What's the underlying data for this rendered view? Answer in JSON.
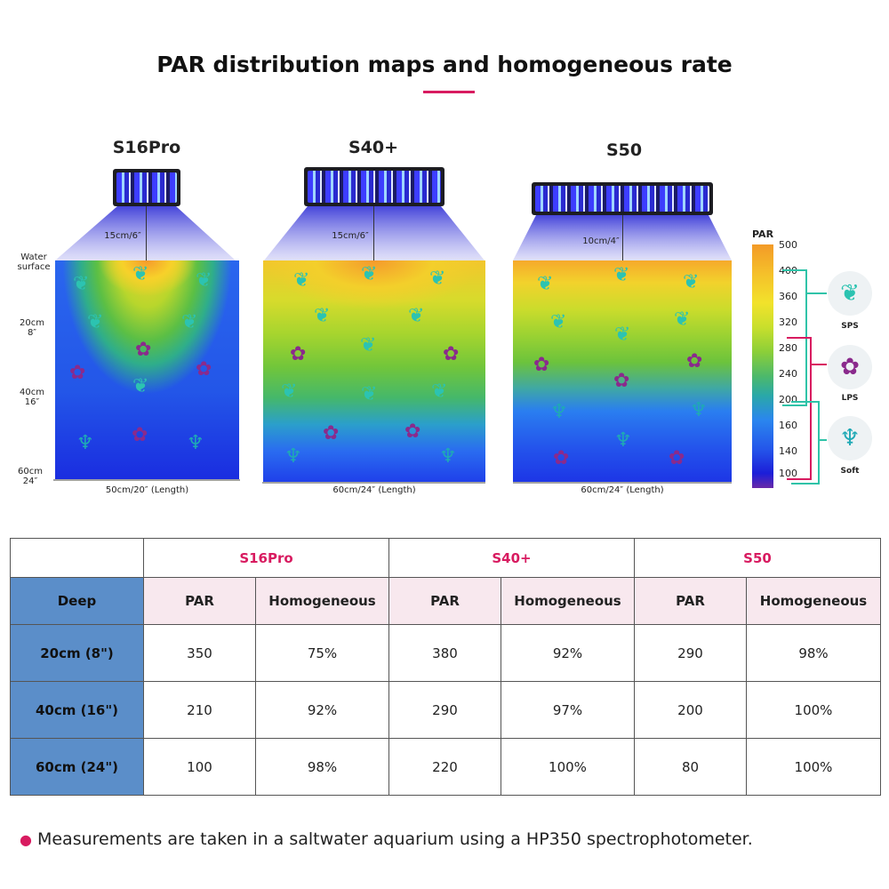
{
  "title": "PAR distribution maps and homogeneous rate",
  "accent_color": "#d81b60",
  "products": [
    {
      "name": "S16Pro",
      "height_label": "15cm/6″",
      "length_label": "50cm/20″ (Length)"
    },
    {
      "name": "S40+",
      "height_label": "15cm/6″",
      "length_label": "60cm/24″ (Length)"
    },
    {
      "name": "S50",
      "height_label": "10cm/4″",
      "length_label": "60cm/24″ (Length)"
    }
  ],
  "depth_labels": {
    "water_line1": "Water",
    "water_line2": "surface",
    "d20_line1": "20cm",
    "d20_line2": "8″",
    "d40_line1": "40cm",
    "d40_line2": "16″",
    "d60_line1": "60cm",
    "d60_line2": "24″"
  },
  "scale": {
    "title": "PAR",
    "ticks": [
      "500",
      "400",
      "360",
      "320",
      "280",
      "240",
      "200",
      "160",
      "140",
      "100"
    ]
  },
  "legend": {
    "sps": "SPS",
    "lps": "LPS",
    "soft": "Soft"
  },
  "icons": {
    "sps": "sps-coral-icon",
    "lps": "lps-coral-icon",
    "soft": "soft-coral-icon"
  },
  "table": {
    "deep_header": "Deep",
    "par_header": "PAR",
    "homog_header": "Homogeneous",
    "rows": [
      {
        "depth": "20cm (8\")",
        "values": [
          "350",
          "75%",
          "380",
          "92%",
          "290",
          "98%"
        ]
      },
      {
        "depth": "40cm (16\")",
        "values": [
          "210",
          "92%",
          "290",
          "97%",
          "200",
          "100%"
        ]
      },
      {
        "depth": "60cm (24\")",
        "values": [
          "100",
          "98%",
          "220",
          "100%",
          "80",
          "100%"
        ]
      }
    ]
  },
  "note": "Measurements are taken in a saltwater aquarium using a HP350 spectrophotometer."
}
